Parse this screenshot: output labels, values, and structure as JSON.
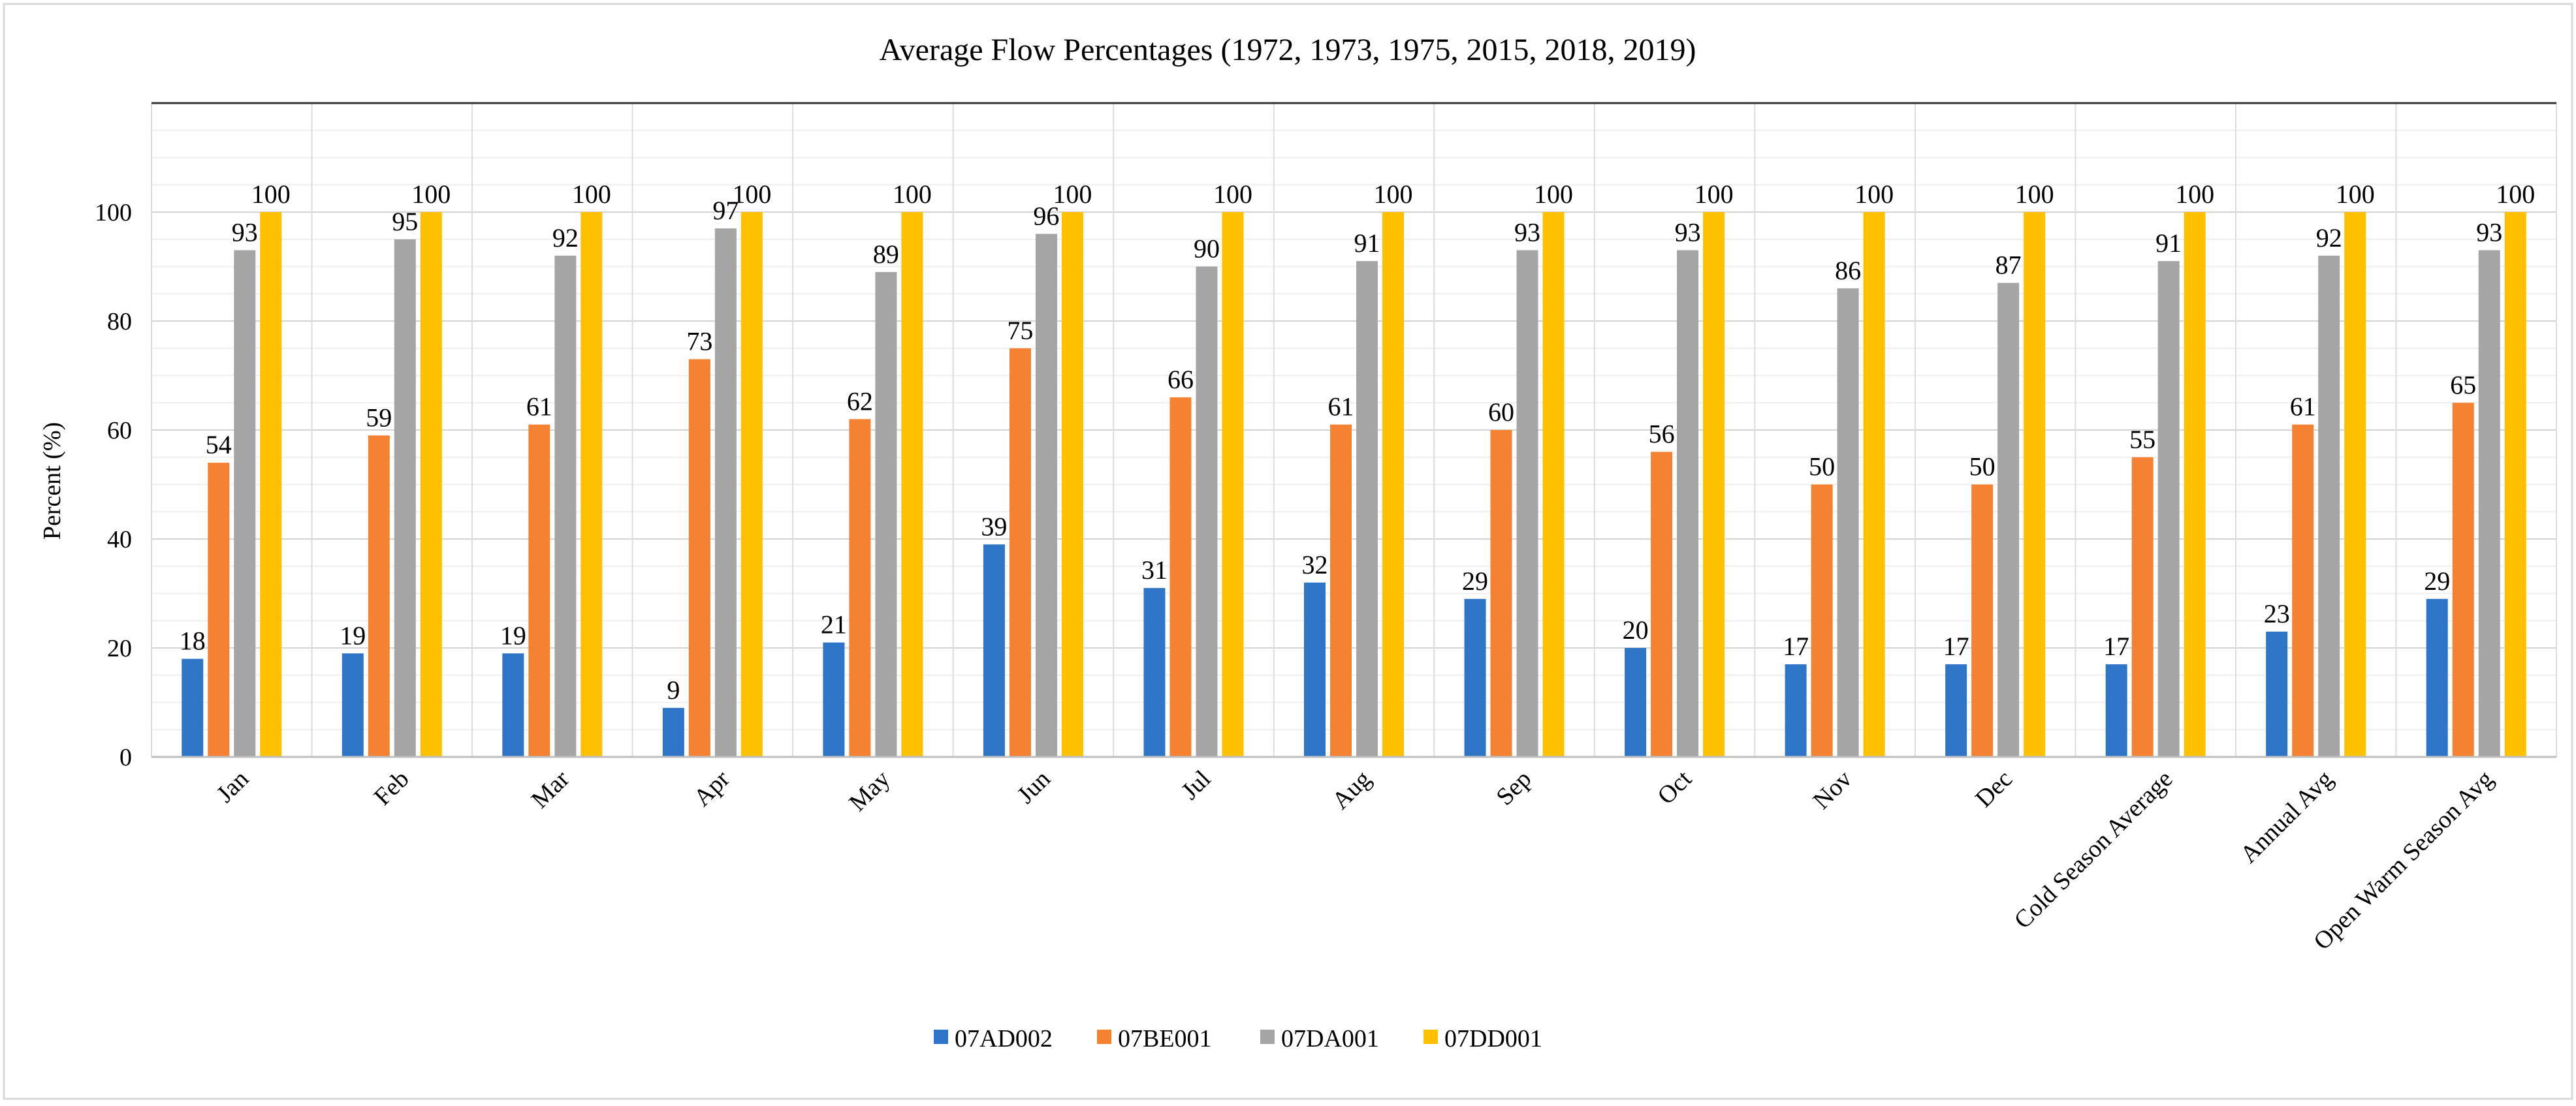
{
  "chart_data": {
    "type": "bar",
    "title": "Average Flow Percentages (1972, 1973, 1975, 2015, 2018, 2019)",
    "xlabel": "",
    "ylabel": "Percent (%)",
    "ylim": [
      0,
      120
    ],
    "yticks": [
      0,
      20,
      40,
      60,
      80,
      100
    ],
    "grid": true,
    "legend_position": "bottom",
    "categories": [
      "Jan",
      "Feb",
      "Mar",
      "Apr",
      "May",
      "Jun",
      "Jul",
      "Aug",
      "Sep",
      "Oct",
      "Nov",
      "Dec",
      "Cold Season Average",
      "Annual Avg",
      "Open Warm Season Avg"
    ],
    "series": [
      {
        "name": "07AD002",
        "color": "#2E75C8",
        "values": [
          18,
          19,
          19,
          9,
          21,
          39,
          31,
          32,
          29,
          20,
          17,
          17,
          17,
          23,
          29
        ]
      },
      {
        "name": "07BE001",
        "color": "#F58232",
        "values": [
          54,
          59,
          61,
          73,
          62,
          75,
          66,
          61,
          60,
          56,
          50,
          50,
          55,
          61,
          65
        ]
      },
      {
        "name": "07DA001",
        "color": "#A5A5A5",
        "values": [
          93,
          95,
          92,
          97,
          89,
          96,
          90,
          91,
          93,
          93,
          86,
          87,
          91,
          92,
          93
        ]
      },
      {
        "name": "07DD001",
        "color": "#FFC000",
        "values": [
          100,
          100,
          100,
          100,
          100,
          100,
          100,
          100,
          100,
          100,
          100,
          100,
          100,
          100,
          100
        ]
      }
    ]
  }
}
